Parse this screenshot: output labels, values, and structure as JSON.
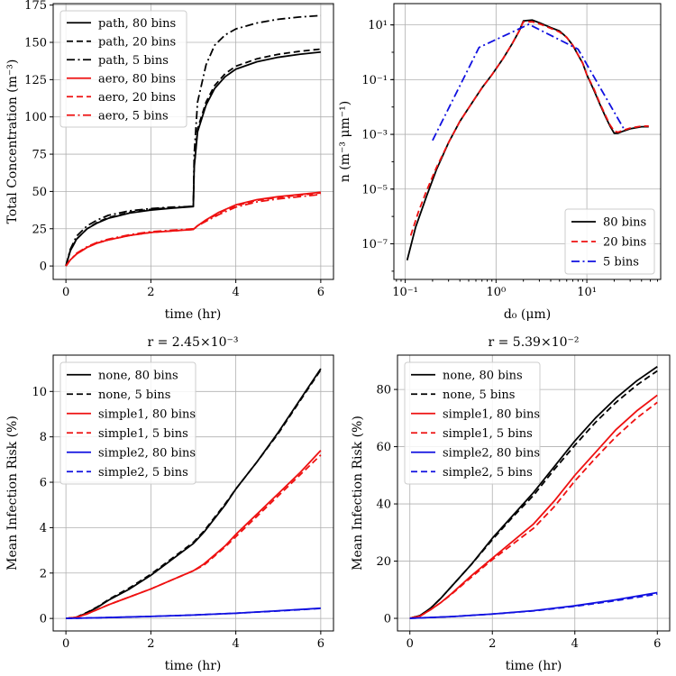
{
  "colors": {
    "black": "#000000",
    "red": "#ee1111",
    "blue": "#1010e0",
    "darkblue": "#2020cc"
  },
  "chart_data": [
    {
      "id": "p1",
      "type": "line",
      "title": "",
      "xlabel": "time (hr)",
      "ylabel": "Total Concentration (m⁻³)",
      "xlim": [
        -0.3,
        6.3
      ],
      "ylim": [
        -9,
        176
      ],
      "xticks": [
        0,
        2,
        4,
        6
      ],
      "yticks": [
        0,
        25,
        50,
        75,
        100,
        125,
        150,
        175
      ],
      "legend": "top-left",
      "series": [
        {
          "name": "path, 80 bins",
          "color": "black",
          "dash": "solid",
          "x": [
            0,
            0.1,
            0.25,
            0.5,
            0.75,
            1,
            1.5,
            2,
            2.5,
            3,
            3.02,
            3.1,
            3.3,
            3.5,
            3.75,
            4,
            4.5,
            5,
            5.5,
            6
          ],
          "y": [
            0,
            10,
            18,
            25,
            29,
            32,
            35.5,
            37.5,
            38.8,
            39.8,
            66,
            90,
            108,
            119,
            127,
            132,
            137,
            140,
            142,
            143.5
          ]
        },
        {
          "name": "path, 20 bins",
          "color": "black",
          "dash": "dashed",
          "x": [
            0,
            0.1,
            0.25,
            0.5,
            0.75,
            1,
            1.5,
            2,
            2.5,
            3,
            3.02,
            3.1,
            3.3,
            3.5,
            3.75,
            4,
            4.5,
            5,
            5.5,
            6
          ],
          "y": [
            0,
            10,
            18,
            25,
            29.5,
            32.5,
            36,
            38,
            39.2,
            40,
            67,
            92,
            110,
            121,
            129,
            134,
            139,
            142,
            144,
            145.5
          ]
        },
        {
          "name": "path, 5 bins",
          "color": "black",
          "dash": "dashdot",
          "x": [
            0,
            0.1,
            0.25,
            0.5,
            0.75,
            1,
            1.5,
            2,
            2.5,
            3,
            3.02,
            3.1,
            3.3,
            3.5,
            3.75,
            4,
            4.5,
            5,
            5.5,
            6
          ],
          "y": [
            0,
            11,
            20,
            27,
            31,
            34,
            37,
            38.5,
            39.5,
            40,
            75,
            110,
            135,
            148,
            155,
            159,
            163,
            165.5,
            167,
            168
          ]
        },
        {
          "name": "aero, 80 bins",
          "color": "red",
          "dash": "solid",
          "x": [
            0,
            0.1,
            0.25,
            0.5,
            0.75,
            1,
            1.5,
            2,
            2.5,
            3,
            3.1,
            3.3,
            3.6,
            4,
            4.5,
            5,
            5.5,
            6
          ],
          "y": [
            0,
            4,
            8,
            12.5,
            15.5,
            17.5,
            20.5,
            22.5,
            23.5,
            24.5,
            27,
            31,
            36,
            41,
            44.5,
            46.5,
            48,
            49.5
          ]
        },
        {
          "name": "aero, 20 bins",
          "color": "red",
          "dash": "dashed",
          "x": [
            0,
            0.1,
            0.25,
            0.5,
            0.75,
            1,
            1.5,
            2,
            2.5,
            3,
            3.1,
            3.3,
            3.6,
            4,
            4.5,
            5,
            5.5,
            6
          ],
          "y": [
            0,
            4,
            8,
            12.5,
            15.5,
            17.5,
            20.5,
            22.5,
            23.5,
            24.5,
            27,
            30.5,
            35.5,
            40.5,
            44,
            46,
            47.5,
            49
          ]
        },
        {
          "name": "aero, 5 bins",
          "color": "red",
          "dash": "dashdot",
          "x": [
            0,
            0.1,
            0.25,
            0.5,
            0.75,
            1,
            1.5,
            2,
            2.5,
            3,
            3.1,
            3.3,
            3.6,
            4,
            4.5,
            5,
            5.5,
            6
          ],
          "y": [
            0,
            4,
            8.5,
            13,
            16,
            18,
            21,
            23,
            24,
            25,
            27,
            30,
            34.5,
            39.5,
            43,
            45,
            46.5,
            48
          ]
        }
      ]
    },
    {
      "id": "p2",
      "type": "line",
      "title": "",
      "xlabel": "d₀ (μm)",
      "ylabel": "n  (m⁻³ μm⁻¹)",
      "xscale": "log",
      "yscale": "log",
      "xlim": [
        0.075,
        65
      ],
      "ylim": [
        5e-09,
        60
      ],
      "xtick_labels": [
        "10⁻¹",
        "10⁰",
        "10¹"
      ],
      "xtick_values": [
        0.1,
        1,
        10
      ],
      "ytick_labels": [
        "10⁻⁷",
        "10⁻⁵",
        "10⁻³",
        "10⁻¹",
        "10¹"
      ],
      "ytick_values": [
        1e-07,
        1e-05,
        0.001,
        0.1,
        10
      ],
      "legend": "bottom-right",
      "series": [
        {
          "name": "80 bins",
          "color": "black",
          "dash": "solid",
          "x": [
            0.105,
            0.13,
            0.17,
            0.22,
            0.3,
            0.4,
            0.55,
            0.7,
            0.9,
            1.2,
            1.5,
            1.8,
            2.0,
            2.5,
            3,
            4,
            5,
            6,
            7,
            8,
            9,
            10,
            12,
            14,
            16,
            18,
            20,
            22,
            25,
            30,
            40,
            48
          ],
          "y": [
            2.5e-08,
            4e-07,
            5e-06,
            5e-05,
            0.0005,
            0.003,
            0.015,
            0.05,
            0.15,
            0.6,
            2,
            6,
            14,
            15,
            12,
            8,
            6,
            3.5,
            1.8,
            0.8,
            0.4,
            0.15,
            0.04,
            0.012,
            0.0045,
            0.002,
            0.0011,
            0.0011,
            0.0013,
            0.0016,
            0.0019,
            0.0019
          ]
        },
        {
          "name": "20 bins",
          "color": "red",
          "dash": "dashed",
          "x": [
            0.115,
            0.14,
            0.17,
            0.22,
            0.3,
            0.4,
            0.55,
            0.7,
            0.9,
            1.2,
            1.5,
            1.8,
            2.0,
            2.5,
            3,
            4,
            5,
            6,
            7,
            8,
            9,
            10,
            12,
            14,
            16,
            18,
            20,
            22,
            25,
            30,
            40,
            48
          ],
          "y": [
            2e-07,
            1.5e-06,
            8e-06,
            6e-05,
            0.0005,
            0.003,
            0.015,
            0.05,
            0.15,
            0.6,
            2,
            6,
            13,
            13,
            11,
            7.5,
            5.5,
            3.5,
            1.8,
            0.8,
            0.4,
            0.15,
            0.045,
            0.013,
            0.005,
            0.0022,
            0.0013,
            0.0012,
            0.0014,
            0.0017,
            0.002,
            0.002
          ]
        },
        {
          "name": "5 bins",
          "color": "blue",
          "dash": "dashdot",
          "x": [
            0.2,
            0.65,
            2.3,
            8.0,
            25.5
          ],
          "y": [
            0.0006,
            1.5,
            10.5,
            1.3,
            0.0016
          ]
        }
      ]
    },
    {
      "id": "p3",
      "type": "line",
      "title": "r = 2.45×10⁻³",
      "xlabel": "time (hr)",
      "ylabel": "Mean Infection Risk (%)",
      "xlim": [
        -0.3,
        6.3
      ],
      "ylim": [
        -0.55,
        11.6
      ],
      "xticks": [
        0,
        2,
        4,
        6
      ],
      "yticks": [
        0,
        2,
        4,
        6,
        8,
        10
      ],
      "legend": "top-left",
      "series": [
        {
          "name": "none, 80 bins",
          "color": "black",
          "dash": "solid",
          "x": [
            0,
            0.25,
            0.5,
            0.75,
            1,
            1.5,
            2,
            2.5,
            3,
            3.25,
            3.5,
            3.75,
            4,
            4.5,
            5,
            5.5,
            6
          ],
          "y": [
            0,
            0.05,
            0.25,
            0.5,
            0.8,
            1.3,
            1.9,
            2.6,
            3.3,
            3.8,
            4.4,
            5.0,
            5.7,
            6.9,
            8.2,
            9.6,
            11.0
          ]
        },
        {
          "name": "none, 5 bins",
          "color": "black",
          "dash": "dashed",
          "x": [
            0,
            0.25,
            0.5,
            0.75,
            1,
            1.5,
            2,
            2.5,
            3,
            3.25,
            3.5,
            3.75,
            4,
            4.5,
            5,
            5.5,
            6
          ],
          "y": [
            0,
            0.06,
            0.27,
            0.52,
            0.83,
            1.35,
            1.95,
            2.65,
            3.35,
            3.85,
            4.45,
            5.05,
            5.7,
            6.9,
            8.15,
            9.55,
            10.95
          ]
        },
        {
          "name": "simple1, 80 bins",
          "color": "red",
          "dash": "solid",
          "x": [
            0,
            0.25,
            0.5,
            0.75,
            1,
            1.5,
            2,
            2.5,
            3,
            3.25,
            3.5,
            3.75,
            4,
            4.5,
            5,
            5.5,
            6
          ],
          "y": [
            0,
            0.05,
            0.2,
            0.4,
            0.6,
            0.95,
            1.3,
            1.7,
            2.1,
            2.4,
            2.8,
            3.2,
            3.7,
            4.6,
            5.5,
            6.4,
            7.4
          ]
        },
        {
          "name": "simple1, 5 bins",
          "color": "red",
          "dash": "dashed",
          "x": [
            0,
            0.25,
            0.5,
            0.75,
            1,
            1.5,
            2,
            2.5,
            3,
            3.25,
            3.5,
            3.75,
            4,
            4.5,
            5,
            5.5,
            6
          ],
          "y": [
            0,
            0.05,
            0.2,
            0.4,
            0.6,
            0.95,
            1.3,
            1.7,
            2.1,
            2.35,
            2.75,
            3.15,
            3.6,
            4.5,
            5.4,
            6.3,
            7.2
          ]
        },
        {
          "name": "simple2, 80 bins",
          "color": "blue",
          "dash": "solid",
          "x": [
            0,
            1,
            2,
            3,
            4,
            5,
            6
          ],
          "y": [
            0,
            0.04,
            0.09,
            0.15,
            0.23,
            0.34,
            0.45
          ]
        },
        {
          "name": "simple2, 5 bins",
          "color": "blue",
          "dash": "dashed",
          "x": [
            0,
            1,
            2,
            3,
            4,
            5,
            6
          ],
          "y": [
            0,
            0.04,
            0.09,
            0.15,
            0.23,
            0.33,
            0.44
          ]
        }
      ]
    },
    {
      "id": "p4",
      "type": "line",
      "title": "r = 5.39×10⁻²",
      "xlabel": "time (hr)",
      "ylabel": "Mean Infection Risk (%)",
      "xlim": [
        -0.3,
        6.3
      ],
      "ylim": [
        -4.4,
        92
      ],
      "xticks": [
        0,
        2,
        4,
        6
      ],
      "yticks": [
        0,
        20,
        40,
        60,
        80
      ],
      "legend": "top-left",
      "series": [
        {
          "name": "none, 80 bins",
          "color": "black",
          "dash": "solid",
          "x": [
            0,
            0.25,
            0.5,
            0.75,
            1,
            1.5,
            2,
            2.5,
            3,
            3.5,
            4,
            4.5,
            5,
            5.5,
            6
          ],
          "y": [
            0,
            1,
            3.5,
            7,
            11,
            19,
            28,
            36,
            44,
            53,
            62,
            70,
            77,
            83,
            88
          ]
        },
        {
          "name": "none, 5 bins",
          "color": "black",
          "dash": "dashed",
          "x": [
            0,
            0.25,
            0.5,
            0.75,
            1,
            1.5,
            2,
            2.5,
            3,
            3.5,
            4,
            4.5,
            5,
            5.5,
            6
          ],
          "y": [
            0,
            1,
            3.5,
            7,
            11,
            19,
            27.5,
            35.5,
            43,
            52,
            60.5,
            68.5,
            75.5,
            81.5,
            86.5
          ]
        },
        {
          "name": "simple1, 80 bins",
          "color": "red",
          "dash": "solid",
          "x": [
            0,
            0.25,
            0.5,
            0.75,
            1,
            1.5,
            2,
            2.5,
            3,
            3.5,
            4,
            4.5,
            5,
            5.5,
            6
          ],
          "y": [
            0,
            0.8,
            3,
            5.5,
            8.5,
            15,
            21,
            27,
            33,
            41,
            50,
            58,
            66,
            72.5,
            78
          ]
        },
        {
          "name": "simple1, 5 bins",
          "color": "red",
          "dash": "dashed",
          "x": [
            0,
            0.25,
            0.5,
            0.75,
            1,
            1.5,
            2,
            2.5,
            3,
            3.5,
            4,
            4.5,
            5,
            5.5,
            6
          ],
          "y": [
            0,
            0.8,
            3,
            5.5,
            8.3,
            14.5,
            20.5,
            26,
            31.5,
            39,
            48,
            56,
            63.5,
            70,
            75.5
          ]
        },
        {
          "name": "simple2, 80 bins",
          "color": "blue",
          "dash": "solid",
          "x": [
            0,
            1,
            2,
            3,
            4,
            5,
            6
          ],
          "y": [
            0,
            0.6,
            1.5,
            2.7,
            4.4,
            6.5,
            9
          ]
        },
        {
          "name": "simple2, 5 bins",
          "color": "blue",
          "dash": "dashed",
          "x": [
            0,
            1,
            2,
            3,
            4,
            5,
            6
          ],
          "y": [
            0,
            0.6,
            1.5,
            2.6,
            4.2,
            6.2,
            8.5
          ]
        }
      ]
    }
  ]
}
